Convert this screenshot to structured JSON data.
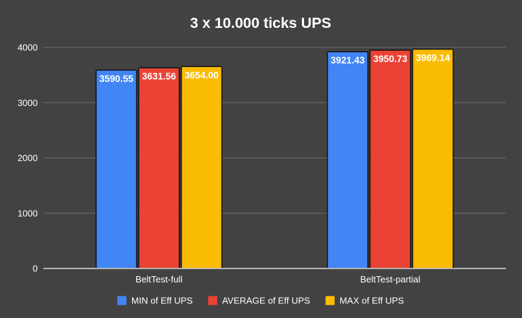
{
  "chart_data": {
    "type": "bar",
    "title": "3 x 10.000 ticks UPS",
    "xlabel": "",
    "ylabel": "",
    "categories": [
      "BeltTest-full",
      "BeltTest-partial"
    ],
    "series": [
      {
        "name": "MIN of Eff UPS",
        "color": "#4285f4",
        "values": [
          3590.55,
          3921.43
        ],
        "labels": [
          "3590.55",
          "3921.43"
        ]
      },
      {
        "name": "AVERAGE of Eff UPS",
        "color": "#ea4335",
        "values": [
          3631.56,
          3950.73
        ],
        "labels": [
          "3631.56",
          "3950.73"
        ]
      },
      {
        "name": "MAX of Eff UPS",
        "color": "#fbbc04",
        "values": [
          3654.0,
          3969.14
        ],
        "labels": [
          "3654.00",
          "3969.14"
        ]
      }
    ],
    "ylim": [
      0,
      4000
    ],
    "yticks": [
      "0",
      "1000",
      "2000",
      "3000",
      "4000"
    ],
    "grid": true,
    "legend_position": "bottom",
    "background": "#424242"
  }
}
